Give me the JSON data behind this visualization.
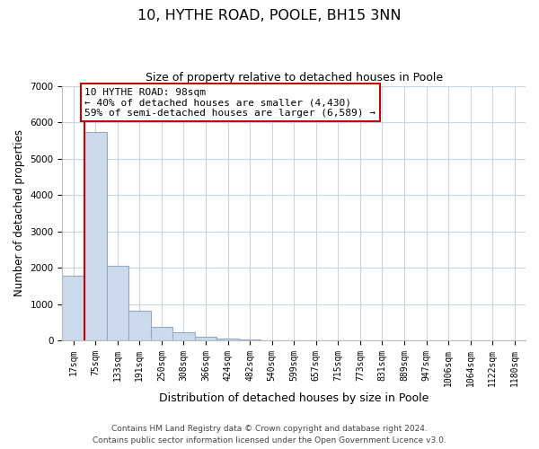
{
  "title": "10, HYTHE ROAD, POOLE, BH15 3NN",
  "subtitle": "Size of property relative to detached houses in Poole",
  "xlabel": "Distribution of detached houses by size in Poole",
  "ylabel": "Number of detached properties",
  "bar_labels": [
    "17sqm",
    "75sqm",
    "133sqm",
    "191sqm",
    "250sqm",
    "308sqm",
    "366sqm",
    "424sqm",
    "482sqm",
    "540sqm",
    "599sqm",
    "657sqm",
    "715sqm",
    "773sqm",
    "831sqm",
    "889sqm",
    "947sqm",
    "1006sqm",
    "1064sqm",
    "1122sqm",
    "1180sqm"
  ],
  "bar_values": [
    1780,
    5730,
    2050,
    820,
    370,
    230,
    110,
    55,
    25,
    10,
    5,
    3,
    2,
    0,
    0,
    0,
    0,
    0,
    0,
    0,
    0
  ],
  "bar_color": "#ccdaeb",
  "bar_edge_color": "#90aac8",
  "vline_color": "#cc0000",
  "annotation_title": "10 HYTHE ROAD: 98sqm",
  "annotation_line1": "← 40% of detached houses are smaller (4,430)",
  "annotation_line2": "59% of semi-detached houses are larger (6,589) →",
  "annotation_box_facecolor": "#ffffff",
  "annotation_box_edgecolor": "#cc0000",
  "ylim": [
    0,
    7000
  ],
  "yticks": [
    0,
    1000,
    2000,
    3000,
    4000,
    5000,
    6000,
    7000
  ],
  "footer_line1": "Contains HM Land Registry data © Crown copyright and database right 2024.",
  "footer_line2": "Contains public sector information licensed under the Open Government Licence v3.0.",
  "background_color": "#ffffff",
  "grid_color": "#c8d4e4",
  "title_fontsize": 11.5,
  "subtitle_fontsize": 9,
  "axis_label_fontsize": 8.5,
  "tick_fontsize": 7,
  "annotation_fontsize": 8,
  "footer_fontsize": 6.5
}
